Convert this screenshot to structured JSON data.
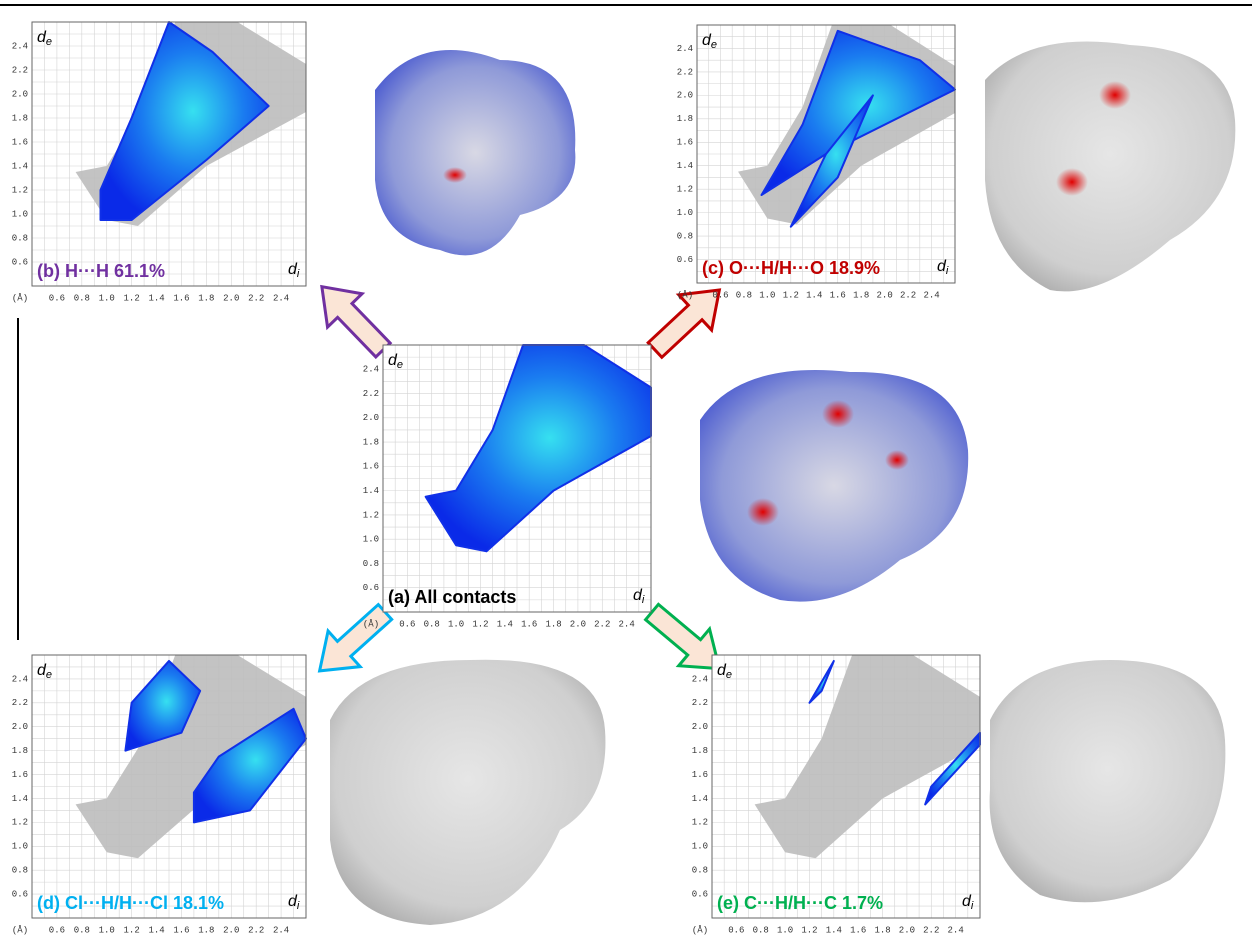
{
  "figure": {
    "axis": {
      "y_label": {
        "main": "d",
        "sub": "e"
      },
      "x_label": {
        "main": "d",
        "sub": "i"
      },
      "ticks": [
        "0.6",
        "0.8",
        "1.0",
        "1.2",
        "1.4",
        "1.6",
        "1.8",
        "2.0",
        "2.2",
        "2.4"
      ],
      "unit": "(Å)"
    },
    "panels": [
      {
        "label": "(b) H···H 61.1%"
      },
      {
        "label": "(c) O···H/H···O 18.9%"
      },
      {
        "label": "(a) All contacts"
      },
      {
        "label": "(d) Cl···H/H···Cl 18.1%"
      },
      {
        "label": "(e) C···H/H···C 1.7%"
      }
    ]
  }
}
